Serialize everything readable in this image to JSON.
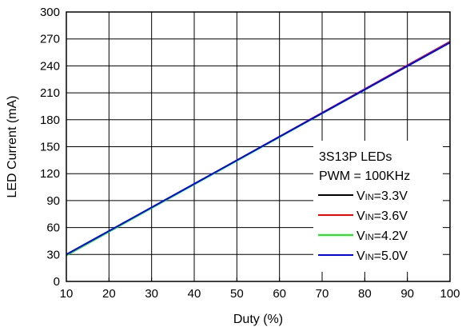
{
  "chart_data": {
    "type": "line",
    "xlabel": "Duty (%)",
    "ylabel": "LED Current (mA)",
    "xlim": [
      10,
      100
    ],
    "ylim": [
      0,
      300
    ],
    "x_ticks": [
      10,
      20,
      30,
      40,
      50,
      60,
      70,
      80,
      90,
      100
    ],
    "y_ticks": [
      0,
      30,
      60,
      90,
      120,
      150,
      180,
      210,
      240,
      270,
      300
    ],
    "grid": true,
    "legend_placement": "bottom-right",
    "annotations": [
      "3S13P LEDs",
      "PWM = 100KHz"
    ],
    "x": [
      10,
      100
    ],
    "series": [
      {
        "name": "VIN=3.3V",
        "label_main": "V",
        "label_sub": "IN",
        "label_rest": "=3.3V",
        "color": "#000000",
        "values": [
          29,
          267
        ]
      },
      {
        "name": "VIN=3.6V",
        "label_main": "V",
        "label_sub": "IN",
        "label_rest": "=3.6V",
        "color": "#ff0000",
        "values": [
          29,
          267
        ]
      },
      {
        "name": "VIN=4.2V",
        "label_main": "V",
        "label_sub": "IN",
        "label_rest": "=4.2V",
        "color": "#00ff00",
        "values": [
          29,
          266
        ]
      },
      {
        "name": "VIN=5.0V",
        "label_main": "V",
        "label_sub": "IN",
        "label_rest": "=5.0V",
        "color": "#0000ff",
        "values": [
          30,
          266
        ]
      }
    ]
  }
}
